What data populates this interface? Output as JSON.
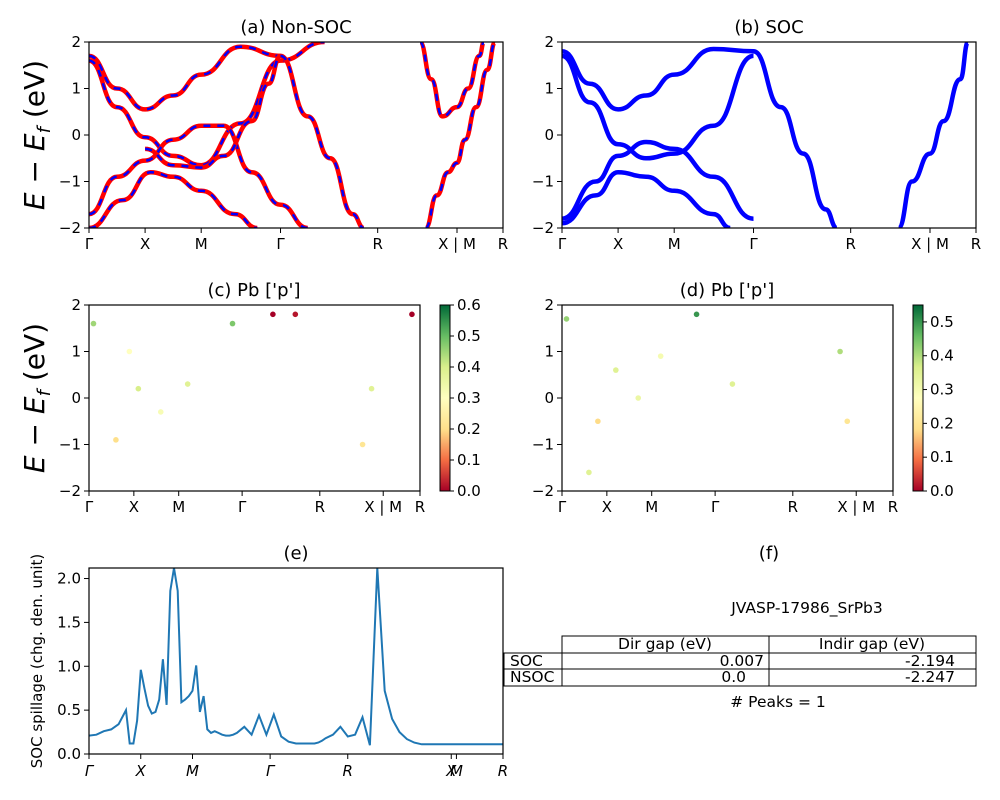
{
  "colors": {
    "nonsoc_line": "#ff0000",
    "nonsoc_dash": "#0000ff",
    "soc_line": "#0000ff",
    "spillage_line": "#1f77b4",
    "cmap": [
      "#a50026",
      "#f46d43",
      "#fee08b",
      "#ffffbf",
      "#d9ef8b",
      "#66bd63",
      "#006837"
    ]
  },
  "kpath": {
    "labels": [
      "Γ",
      "X",
      "M",
      "Γ",
      "R",
      "X | M",
      "R"
    ],
    "positions": [
      0,
      0.5,
      1.0,
      1.707,
      2.573,
      3.28,
      3.69
    ]
  },
  "bands_axis": {
    "ylabel": "E − E_f (eV)",
    "ylabel_main": "E − E",
    "ylabel_sub": "f",
    "ylabel_unit": " (eV)",
    "ylim": [
      -2,
      2
    ],
    "yticks": [
      "−2",
      "−1",
      "0",
      "1",
      "2"
    ]
  },
  "panel_a": {
    "title": "(a) Non-SOC"
  },
  "panel_b": {
    "title": "(b) SOC"
  },
  "panel_c": {
    "title": "(c)  Pb ['p']",
    "colorbar_ticks": [
      "0.0",
      "0.1",
      "0.2",
      "0.3",
      "0.4",
      "0.5",
      "0.6"
    ]
  },
  "panel_d": {
    "title": "(d) Pb ['p']",
    "colorbar_ticks": [
      "0.0",
      "0.1",
      "0.2",
      "0.3",
      "0.4",
      "0.5"
    ]
  },
  "panel_e": {
    "title": "(e)",
    "ylabel": "SOC spillage (chg. den. unit)",
    "yticks": [
      "0.0",
      "0.5",
      "1.0",
      "1.5",
      "2.0"
    ],
    "xticks": [
      "Γ",
      "X",
      "M",
      "Γ",
      "R",
      "X",
      "M",
      "R"
    ]
  },
  "panel_f": {
    "title": "(f)",
    "material": "JVASP-17986_SrPb3",
    "col_headers": [
      "Dir gap (eV)",
      "Indir gap (eV)"
    ],
    "rows": [
      {
        "label": "SOC",
        "dir": "0.007",
        "indir": "-2.194"
      },
      {
        "label": "NSOC",
        "dir": "0.0",
        "indir": "-2.247"
      }
    ],
    "peaks": "# Peaks = 1"
  },
  "chart_data": [
    {
      "type": "line",
      "title": "(a) Non-SOC",
      "ylabel": "E − E_f (eV)",
      "xtick_labels": [
        "Γ",
        "X",
        "M",
        "Γ",
        "R",
        "X | M",
        "R"
      ],
      "ylim": [
        -2,
        2
      ],
      "series": [
        {
          "values": [
            [
              0,
              1.7
            ],
            [
              0.25,
              1.0
            ],
            [
              0.5,
              0.55
            ],
            [
              0.75,
              0.85
            ],
            [
              1.0,
              1.3
            ],
            [
              1.35,
              1.9
            ],
            [
              1.707,
              1.7
            ]
          ]
        },
        {
          "values": [
            [
              0,
              1.6
            ],
            [
              0.25,
              0.6
            ],
            [
              0.5,
              -0.05
            ],
            [
              0.75,
              -0.45
            ],
            [
              1.0,
              -0.65
            ],
            [
              1.35,
              0.25
            ],
            [
              1.707,
              1.6
            ],
            [
              2.1,
              2.0
            ]
          ]
        },
        {
          "values": [
            [
              0,
              -1.7
            ],
            [
              0.25,
              -0.9
            ],
            [
              0.5,
              -0.55
            ],
            [
              0.75,
              -0.1
            ],
            [
              1.0,
              0.2
            ],
            [
              1.2,
              0.2
            ],
            [
              1.45,
              -0.8
            ],
            [
              1.707,
              -1.5
            ],
            [
              1.95,
              -2.0
            ]
          ]
        },
        {
          "values": [
            [
              0,
              -2.0
            ],
            [
              0.3,
              -1.4
            ],
            [
              0.55,
              -0.8
            ],
            [
              0.75,
              -0.9
            ],
            [
              1.0,
              -1.2
            ],
            [
              1.3,
              -1.7
            ],
            [
              1.5,
              -2.0
            ]
          ]
        },
        {
          "values": [
            [
              0.5,
              -0.3
            ],
            [
              0.75,
              -0.65
            ],
            [
              1.0,
              -0.7
            ],
            [
              1.2,
              -0.45
            ],
            [
              1.45,
              0.3
            ],
            [
              1.6,
              1.1
            ],
            [
              1.707,
              1.7
            ]
          ]
        },
        {
          "values": [
            [
              1.707,
              1.7
            ],
            [
              1.95,
              0.4
            ],
            [
              2.15,
              -0.5
            ],
            [
              2.35,
              -1.7
            ],
            [
              2.45,
              -2.0
            ]
          ]
        },
        {
          "values": [
            [
              3.0,
              -2.0
            ],
            [
              3.1,
              -1.3
            ],
            [
              3.2,
              -0.8
            ],
            [
              3.28,
              -0.6
            ],
            [
              3.35,
              -0.1
            ],
            [
              3.45,
              0.6
            ],
            [
              3.55,
              1.4
            ],
            [
              3.62,
              2.0
            ]
          ]
        },
        {
          "values": [
            [
              2.95,
              2.0
            ],
            [
              3.05,
              1.2
            ],
            [
              3.15,
              0.4
            ],
            [
              3.28,
              0.6
            ],
            [
              3.38,
              1.0
            ],
            [
              3.48,
              1.7
            ],
            [
              3.52,
              2.0
            ]
          ]
        }
      ]
    },
    {
      "type": "line",
      "title": "(b) SOC",
      "xtick_labels": [
        "Γ",
        "X",
        "M",
        "Γ",
        "R",
        "X | M",
        "R"
      ],
      "ylim": [
        -2,
        2
      ],
      "series": [
        {
          "values": [
            [
              0,
              1.8
            ],
            [
              0.25,
              1.1
            ],
            [
              0.5,
              0.55
            ],
            [
              0.75,
              0.85
            ],
            [
              1.0,
              1.3
            ],
            [
              1.35,
              1.85
            ],
            [
              1.707,
              1.8
            ]
          ]
        },
        {
          "values": [
            [
              0,
              1.7
            ],
            [
              0.25,
              0.7
            ],
            [
              0.5,
              -0.2
            ],
            [
              0.75,
              -0.5
            ],
            [
              1.0,
              -0.4
            ],
            [
              1.35,
              0.2
            ],
            [
              1.707,
              1.7
            ]
          ]
        },
        {
          "values": [
            [
              0,
              -1.8
            ],
            [
              0.3,
              -1.0
            ],
            [
              0.5,
              -0.45
            ],
            [
              0.75,
              -0.15
            ],
            [
              1.0,
              -0.3
            ],
            [
              1.35,
              -0.9
            ],
            [
              1.707,
              -1.8
            ]
          ]
        },
        {
          "values": [
            [
              0,
              -1.9
            ],
            [
              0.3,
              -1.3
            ],
            [
              0.5,
              -0.8
            ],
            [
              0.75,
              -0.9
            ],
            [
              1.0,
              -1.2
            ],
            [
              1.35,
              -1.7
            ],
            [
              1.5,
              -2.0
            ]
          ]
        },
        {
          "values": [
            [
              1.707,
              1.8
            ],
            [
              1.95,
              0.6
            ],
            [
              2.15,
              -0.4
            ],
            [
              2.35,
              -1.6
            ],
            [
              2.45,
              -2.0
            ]
          ]
        },
        {
          "values": [
            [
              3.0,
              -2.0
            ],
            [
              3.12,
              -1.0
            ],
            [
              3.28,
              -0.4
            ],
            [
              3.4,
              0.3
            ],
            [
              3.55,
              1.2
            ],
            [
              3.62,
              2.0
            ]
          ]
        }
      ]
    },
    {
      "type": "scatter",
      "title": "(c)  Pb ['p']",
      "xtick_labels": [
        "Γ",
        "X",
        "M",
        "Γ",
        "R",
        "X | M",
        "R"
      ],
      "ylim": [
        -2,
        2
      ],
      "colorbar_range": [
        0.0,
        0.6
      ],
      "points": [
        {
          "x": 0.05,
          "y": 1.6,
          "c": 0.45
        },
        {
          "x": 0.45,
          "y": 1.0,
          "c": 0.3
        },
        {
          "x": 0.3,
          "y": -0.9,
          "c": 0.2
        },
        {
          "x": 0.55,
          "y": 0.2,
          "c": 0.4
        },
        {
          "x": 0.8,
          "y": -0.3,
          "c": 0.32
        },
        {
          "x": 1.1,
          "y": 0.3,
          "c": 0.38
        },
        {
          "x": 1.6,
          "y": 1.6,
          "c": 0.48
        },
        {
          "x": 2.05,
          "y": 1.8,
          "c": 0.0
        },
        {
          "x": 2.3,
          "y": 1.8,
          "c": 0.02
        },
        {
          "x": 3.05,
          "y": -1.0,
          "c": 0.22
        },
        {
          "x": 3.15,
          "y": 0.2,
          "c": 0.38
        },
        {
          "x": 3.6,
          "y": 1.8,
          "c": 0.0
        }
      ]
    },
    {
      "type": "scatter",
      "title": "(d) Pb ['p']",
      "xtick_labels": [
        "Γ",
        "X",
        "M",
        "Γ",
        "R",
        "X | M",
        "R"
      ],
      "ylim": [
        -2,
        2
      ],
      "colorbar_range": [
        0.0,
        0.55
      ],
      "points": [
        {
          "x": 0.05,
          "y": 1.7,
          "c": 0.42
        },
        {
          "x": 0.4,
          "y": -0.5,
          "c": 0.18
        },
        {
          "x": 0.6,
          "y": 0.6,
          "c": 0.35
        },
        {
          "x": 0.85,
          "y": 0.0,
          "c": 0.32
        },
        {
          "x": 1.1,
          "y": 0.9,
          "c": 0.3
        },
        {
          "x": 1.5,
          "y": 1.8,
          "c": 0.5
        },
        {
          "x": 1.9,
          "y": 0.3,
          "c": 0.35
        },
        {
          "x": 0.3,
          "y": -1.6,
          "c": 0.35
        },
        {
          "x": 3.1,
          "y": 1.0,
          "c": 0.4
        },
        {
          "x": 3.18,
          "y": -0.5,
          "c": 0.2
        }
      ]
    },
    {
      "type": "line",
      "title": "(e)",
      "ylabel": "SOC spillage (chg. den. unit)",
      "xtick_labels": [
        "Γ",
        "X",
        "M",
        "Γ",
        "R",
        "X",
        "M",
        "R"
      ],
      "ylim": [
        0,
        2.12
      ],
      "x": [
        0,
        2,
        4,
        6,
        8,
        10,
        11,
        12,
        13,
        14,
        15,
        16,
        17,
        18,
        19,
        20,
        21,
        22,
        23,
        24,
        25,
        26,
        27,
        28,
        29,
        30,
        31,
        32,
        33,
        34,
        35,
        36,
        37,
        38,
        39,
        40,
        42,
        44,
        46,
        48,
        50,
        52,
        54,
        56,
        57,
        58,
        59,
        60,
        61,
        62,
        63,
        64,
        66,
        68,
        70,
        72,
        74,
        76,
        78,
        80,
        82,
        84,
        86,
        88,
        90,
        92,
        94,
        96,
        98,
        99,
        100,
        101,
        102,
        103,
        104,
        106,
        108,
        110,
        112
      ],
      "values": [
        0.21,
        0.22,
        0.26,
        0.28,
        0.34,
        0.5,
        0.12,
        0.12,
        0.38,
        0.96,
        0.75,
        0.55,
        0.46,
        0.48,
        0.62,
        1.08,
        0.56,
        1.86,
        2.12,
        1.86,
        0.59,
        0.62,
        0.66,
        0.72,
        1.01,
        0.48,
        0.66,
        0.28,
        0.24,
        0.26,
        0.24,
        0.22,
        0.21,
        0.21,
        0.22,
        0.24,
        0.31,
        0.22,
        0.44,
        0.22,
        0.45,
        0.2,
        0.14,
        0.12,
        0.12,
        0.12,
        0.12,
        0.12,
        0.12,
        0.13,
        0.15,
        0.18,
        0.22,
        0.31,
        0.2,
        0.22,
        0.42,
        0.1,
        2.12,
        0.72,
        0.4,
        0.25,
        0.17,
        0.13,
        0.11,
        0.11,
        0.11,
        0.11,
        0.11,
        0.11,
        0.11,
        0.11,
        0.11,
        0.11,
        0.11,
        0.11,
        0.11,
        0.11,
        0.11
      ]
    }
  ]
}
